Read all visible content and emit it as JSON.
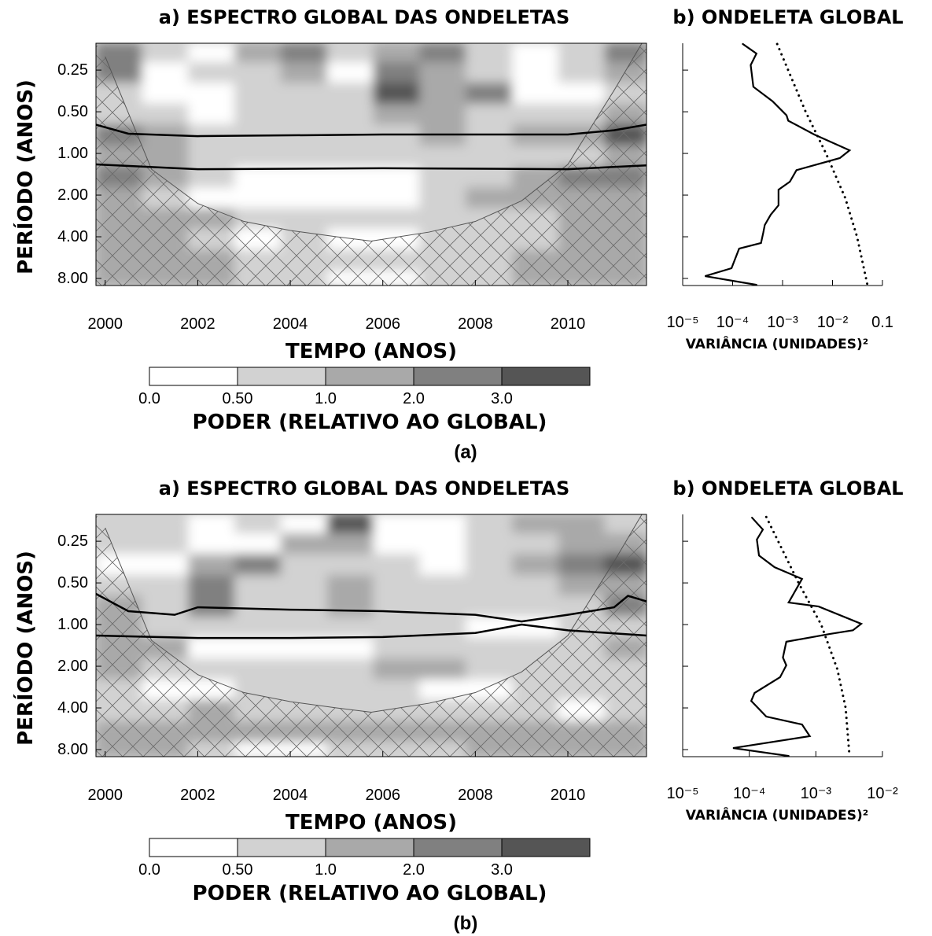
{
  "chart_data": [
    {
      "type": "contour",
      "title": "a) ESPECTRO GLOBAL DAS ONDELETAS",
      "xlabel": "TEMPO (ANOS)",
      "ylabel": "PERÍODO (ANOS)",
      "xlim": [
        1999.8,
        2011.7
      ],
      "xticks": [
        2000,
        2002,
        2004,
        2006,
        2008,
        2010
      ],
      "ylim": [
        9,
        0.16
      ],
      "yscale": "log",
      "yticks": [
        0.25,
        {
          "value": 0.5,
          "label": "0.50"
        },
        {
          "value": 1,
          "label": "1.00"
        },
        {
          "value": 2,
          "label": "2.00"
        },
        {
          "value": 4,
          "label": "4.00"
        },
        {
          "value": 8,
          "label": "8.00"
        }
      ],
      "xbins": [
        1999.8,
        2000.8,
        2001.8,
        2002.8,
        2003.8,
        2004.8,
        2005.8,
        2006.8,
        2007.8,
        2008.8,
        2009.8,
        2010.8,
        2011.7
      ],
      "ybins": [
        0.16,
        0.22,
        0.31,
        0.44,
        0.62,
        0.88,
        1.25,
        1.77,
        2.5,
        3.5,
        5.0,
        7.1,
        9.0
      ],
      "z": [
        [
          2.5,
          0.7,
          0.3,
          1.5,
          2.5,
          0.7,
          1.5,
          2.5,
          0.7,
          0.3,
          0.7,
          2.5
        ],
        [
          2.5,
          0.3,
          0.7,
          0.7,
          1.5,
          0.3,
          2.5,
          1.5,
          0.7,
          0.3,
          0.7,
          1.5
        ],
        [
          0.7,
          0.3,
          0.3,
          0.7,
          0.7,
          0.7,
          3.5,
          1.5,
          2.5,
          0.3,
          0.3,
          0.7
        ],
        [
          0.7,
          0.7,
          0.3,
          0.7,
          0.7,
          0.7,
          1.5,
          1.5,
          0.7,
          0.7,
          0.7,
          1.5
        ],
        [
          2.5,
          1.5,
          0.7,
          0.7,
          0.7,
          0.7,
          0.7,
          1.5,
          0.7,
          1.5,
          1.5,
          3.5
        ],
        [
          1.5,
          1.5,
          0.7,
          0.7,
          0.7,
          0.7,
          0.7,
          0.7,
          0.7,
          0.7,
          0.7,
          1.5
        ],
        [
          2.5,
          1.5,
          0.7,
          0.3,
          0.3,
          0.3,
          0.3,
          0.7,
          0.7,
          1.5,
          2.5,
          2.5
        ],
        [
          1.5,
          0.7,
          0.3,
          0.3,
          0.3,
          0.3,
          0.3,
          0.7,
          1.5,
          1.5,
          1.5,
          1.5
        ],
        [
          1.5,
          1.5,
          1.5,
          0.7,
          0.7,
          0.7,
          0.7,
          0.7,
          0.7,
          0.7,
          1.5,
          1.5
        ],
        [
          1.5,
          1.5,
          0.7,
          0.3,
          0.7,
          0.3,
          0.3,
          0.7,
          0.7,
          0.7,
          1.5,
          1.5
        ],
        [
          1.5,
          1.5,
          1.5,
          0.7,
          0.7,
          0.7,
          0.7,
          0.7,
          0.7,
          1.5,
          1.5,
          1.5
        ],
        [
          1.5,
          1.5,
          1.5,
          0.7,
          0.7,
          0.3,
          0.3,
          0.7,
          0.7,
          1.5,
          1.5,
          1.5
        ]
      ],
      "levels": [
        {
          "value": 0,
          "label": "0.0"
        },
        {
          "value": 0.5,
          "label": "0.50"
        },
        {
          "value": 1,
          "label": "1.0"
        },
        {
          "value": 2,
          "label": "2.0"
        },
        {
          "value": 3,
          "label": "3.0"
        }
      ],
      "level_colors": [
        "#ffffff",
        "#d2d2d2",
        "#a9a9a9",
        "#808080",
        "#555555"
      ],
      "colorbar_label": "PODER (RELATIVO AO GLOBAL)",
      "coi": {
        "x": [
          2000.0,
          2001,
          2002,
          2003,
          2004,
          2005,
          2005.75,
          2007,
          2008,
          2009,
          2010,
          2011,
          2011.6
        ],
        "y": [
          0.2,
          1.3,
          2.3,
          3.1,
          3.6,
          4.0,
          4.3,
          3.7,
          3.1,
          2.2,
          1.2,
          0.35,
          0.16
        ]
      },
      "contours": [
        {
          "x": [
            1999.8,
            2000.5,
            2002,
            2004,
            2006,
            2008,
            2010,
            2011,
            2011.7
          ],
          "y": [
            0.62,
            0.72,
            0.75,
            0.74,
            0.73,
            0.73,
            0.73,
            0.68,
            0.62
          ]
        },
        {
          "x": [
            1999.8,
            2002,
            2006,
            2010,
            2011.7
          ],
          "y": [
            1.2,
            1.3,
            1.28,
            1.3,
            1.22
          ]
        }
      ],
      "caption": "(a)"
    },
    {
      "type": "line",
      "title": "b) ONDELETA GLOBAL",
      "xlabel": "VARIÂNCIA (UNIDADES)²",
      "xscale": "log",
      "xlim": [
        1e-05,
        0.1
      ],
      "xticks": [
        {
          "value": 1e-05,
          "label": "10⁻⁵"
        },
        {
          "value": 0.0001,
          "label": "10⁻⁴"
        },
        {
          "value": 0.001,
          "label": "10⁻³"
        },
        {
          "value": 0.01,
          "label": "10⁻²"
        },
        0.1
      ],
      "ylim": [
        9,
        0.16
      ],
      "yscale": "log",
      "yticks": [
        0.25,
        0.5,
        1,
        2,
        4,
        8
      ],
      "series": [
        {
          "color": "#000000",
          "dash": "solid",
          "x": [
            0.00016,
            0.0003,
            0.00023,
            0.00026,
            0.00063,
            0.0012,
            0.0013,
            0.0043,
            0.022,
            0.014,
            0.0019,
            0.0014,
            0.00083,
            0.00083,
            0.00058,
            0.00044,
            0.00041,
            0.00037,
            0.000135,
            9.5e-05,
            2.8e-05,
            0.0003
          ],
          "y": [
            0.162,
            0.19,
            0.23,
            0.33,
            0.42,
            0.53,
            0.58,
            0.73,
            0.95,
            1.08,
            1.32,
            1.6,
            1.83,
            2.37,
            2.77,
            3.29,
            3.75,
            4.44,
            4.87,
            6.75,
            7.7,
            8.9
          ]
        },
        {
          "color": "#000000",
          "dash": "dotted",
          "x": [
            0.00078,
            0.0029,
            0.0074,
            0.018,
            0.031,
            0.05
          ],
          "y": [
            0.162,
            0.5,
            1.0,
            2.1,
            4.0,
            8.9
          ]
        }
      ]
    },
    {
      "type": "contour",
      "title": "a) ESPECTRO GLOBAL DAS ONDELETAS",
      "xlabel": "TEMPO (ANOS)",
      "ylabel": "PERÍODO (ANOS)",
      "xlim": [
        1999.8,
        2011.7
      ],
      "xticks": [
        2000,
        2002,
        2004,
        2006,
        2008,
        2010
      ],
      "ylim": [
        9,
        0.16
      ],
      "yscale": "log",
      "yticks": [
        0.25,
        {
          "value": 0.5,
          "label": "0.50"
        },
        {
          "value": 1,
          "label": "1.00"
        },
        {
          "value": 2,
          "label": "2.00"
        },
        {
          "value": 4,
          "label": "4.00"
        },
        {
          "value": 8,
          "label": "8.00"
        }
      ],
      "xbins": [
        1999.8,
        2000.8,
        2001.8,
        2002.8,
        2003.8,
        2004.8,
        2005.8,
        2006.8,
        2007.8,
        2008.8,
        2009.8,
        2010.8,
        2011.7
      ],
      "ybins": [
        0.16,
        0.22,
        0.31,
        0.44,
        0.62,
        0.88,
        1.25,
        1.77,
        2.5,
        3.5,
        5.0,
        7.1,
        9.0
      ],
      "z": [
        [
          0.7,
          0.7,
          0.3,
          0.7,
          0.3,
          3.5,
          0.3,
          0.3,
          0.7,
          1.5,
          1.5,
          0.7
        ],
        [
          0.7,
          0.7,
          0.3,
          0.3,
          1.5,
          1.5,
          0.3,
          0.3,
          0.7,
          0.7,
          1.5,
          1.5
        ],
        [
          0.3,
          0.3,
          1.5,
          2.5,
          0.7,
          0.7,
          0.7,
          0.3,
          0.7,
          1.5,
          2.5,
          3.5
        ],
        [
          0.7,
          0.7,
          2.5,
          0.7,
          0.7,
          1.5,
          0.7,
          0.7,
          0.7,
          0.7,
          1.5,
          1.5
        ],
        [
          1.5,
          0.7,
          2.5,
          0.7,
          0.7,
          1.5,
          0.7,
          0.7,
          0.7,
          0.7,
          0.7,
          2.5
        ],
        [
          1.5,
          0.7,
          0.7,
          0.7,
          0.7,
          0.7,
          0.7,
          0.7,
          0.3,
          0.3,
          0.7,
          0.7
        ],
        [
          1.5,
          1.5,
          0.3,
          0.3,
          0.3,
          0.3,
          0.7,
          0.7,
          0.7,
          0.7,
          0.7,
          1.5
        ],
        [
          1.5,
          0.7,
          0.7,
          0.7,
          0.7,
          0.7,
          1.5,
          1.5,
          0.7,
          0.7,
          0.7,
          0.7
        ],
        [
          0.7,
          0.3,
          0.3,
          0.7,
          0.7,
          0.7,
          0.7,
          0.3,
          0.3,
          0.7,
          0.7,
          0.7
        ],
        [
          0.7,
          0.7,
          1.5,
          0.7,
          0.7,
          0.7,
          0.7,
          0.7,
          0.7,
          0.7,
          0.3,
          0.7
        ],
        [
          1.5,
          1.5,
          1.5,
          1.5,
          1.5,
          1.5,
          1.5,
          1.5,
          1.5,
          1.5,
          1.5,
          1.5
        ],
        [
          1.5,
          1.5,
          0.7,
          0.3,
          0.3,
          0.7,
          0.7,
          0.7,
          1.5,
          1.5,
          1.5,
          1.5
        ]
      ],
      "levels": [
        {
          "value": 0,
          "label": "0.0"
        },
        {
          "value": 0.5,
          "label": "0.50"
        },
        {
          "value": 1,
          "label": "1.0"
        },
        {
          "value": 2,
          "label": "2.0"
        },
        {
          "value": 3,
          "label": "3.0"
        }
      ],
      "level_colors": [
        "#ffffff",
        "#d2d2d2",
        "#a9a9a9",
        "#808080",
        "#555555"
      ],
      "colorbar_label": "PODER (RELATIVO AO GLOBAL)",
      "coi": {
        "x": [
          2000.0,
          2001,
          2002,
          2003,
          2004,
          2005,
          2005.75,
          2007,
          2008,
          2009,
          2010,
          2011,
          2011.6
        ],
        "y": [
          0.2,
          1.3,
          2.3,
          3.1,
          3.6,
          4.0,
          4.3,
          3.7,
          3.1,
          2.2,
          1.2,
          0.35,
          0.16
        ]
      },
      "contours": [
        {
          "x": [
            1999.8,
            2000.5,
            2001.5,
            2002,
            2004,
            2006,
            2008,
            2009,
            2010,
            2011,
            2011.3,
            2011.7
          ],
          "y": [
            0.6,
            0.8,
            0.85,
            0.75,
            0.78,
            0.8,
            0.85,
            0.95,
            0.85,
            0.75,
            0.62,
            0.68
          ]
        },
        {
          "x": [
            1999.8,
            2002,
            2004,
            2006,
            2008,
            2009,
            2010,
            2011.7
          ],
          "y": [
            1.2,
            1.25,
            1.25,
            1.23,
            1.15,
            1.0,
            1.1,
            1.2
          ]
        }
      ],
      "caption": "(b)"
    },
    {
      "type": "line",
      "title": "b) ONDELETA GLOBAL",
      "xlabel": "VARIÂNCIA (UNIDADES)²",
      "xscale": "log",
      "xlim": [
        1e-05,
        0.01
      ],
      "xticks": [
        {
          "value": 1e-05,
          "label": "10⁻⁵"
        },
        {
          "value": 0.0001,
          "label": "10⁻⁴"
        },
        {
          "value": 0.001,
          "label": "10⁻³"
        },
        {
          "value": 0.01,
          "label": "10⁻²"
        }
      ],
      "ylim": [
        9,
        0.16
      ],
      "yscale": "log",
      "yticks": [
        0.25,
        0.5,
        1,
        2,
        4,
        8
      ],
      "series": [
        {
          "color": "#000000",
          "dash": "solid",
          "x": [
            0.00011,
            0.00016,
            0.00013,
            0.00014,
            0.00024,
            0.00062,
            0.00039,
            0.0011,
            0.0048,
            0.0036,
            0.0016,
            0.00036,
            0.00032,
            0.00036,
            0.00029,
            0.00012,
            0.000107,
            0.00018,
            0.00062,
            0.00081,
            5.7e-05,
            0.00039
          ],
          "y": [
            0.169,
            0.206,
            0.243,
            0.317,
            0.385,
            0.468,
            0.693,
            0.74,
            0.987,
            1.1,
            1.17,
            1.33,
            1.73,
            1.97,
            2.4,
            3.12,
            3.56,
            4.62,
            5.27,
            6.4,
            7.8,
            8.9
          ]
        },
        {
          "color": "#000000",
          "dash": "dotted",
          "x": [
            0.00018,
            0.00055,
            0.0012,
            0.0021,
            0.0028,
            0.0032
          ],
          "y": [
            0.167,
            0.5,
            1.0,
            2.1,
            4.0,
            8.9
          ]
        }
      ]
    }
  ]
}
